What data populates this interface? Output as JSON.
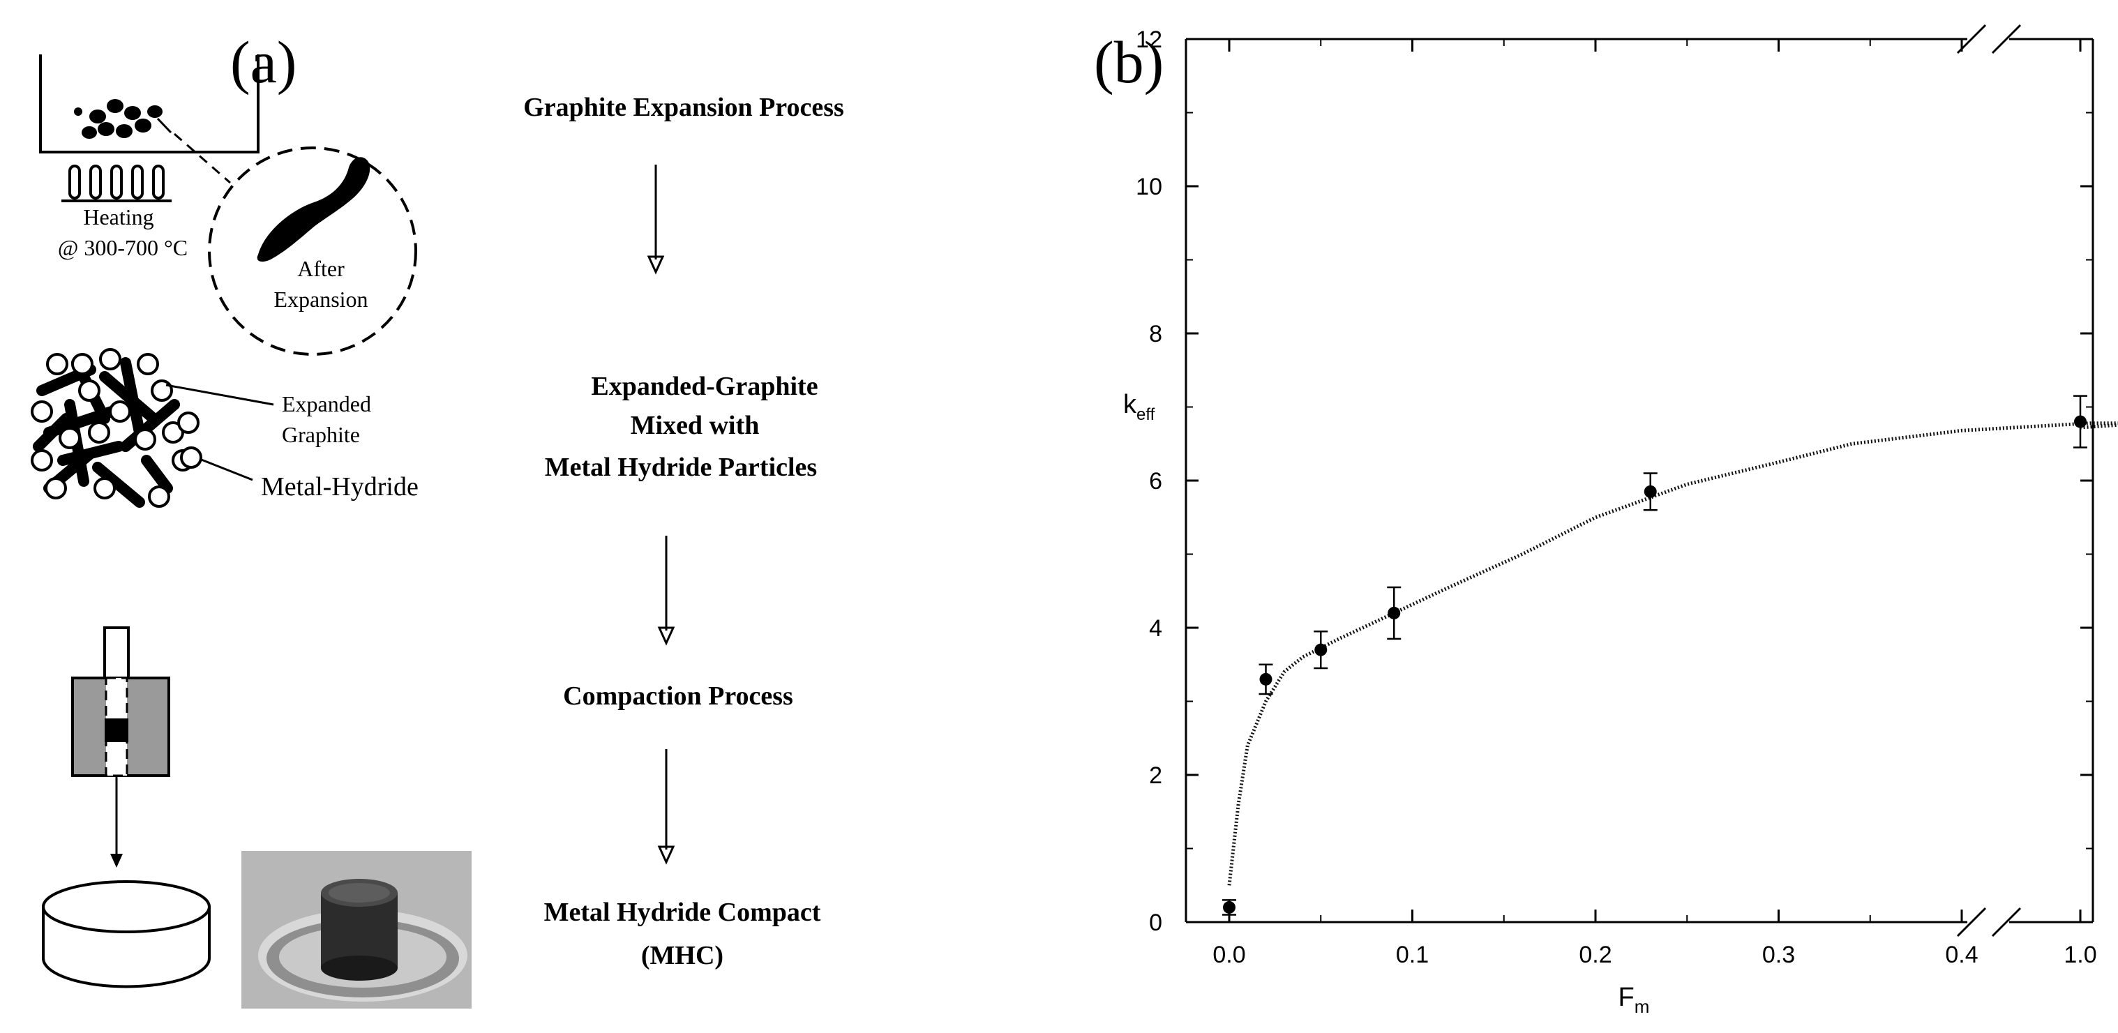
{
  "panel_a": {
    "label": "(a)",
    "heating_label": "Heating",
    "temperature_label": "@ 300-700 °C",
    "after_expansion_line1": "After",
    "after_expansion_line2": "Expansion",
    "expanded_graphite_line1": "Expanded",
    "expanded_graphite_line2": "Graphite",
    "metal_hydride_label": "Metal-Hydride",
    "steps": [
      "Graphite Expansion Process",
      "Expanded-Graphite",
      "Mixed with",
      "Metal Hydride Particles",
      "Compaction Process",
      "Metal Hydride Compact",
      "(MHC)"
    ]
  },
  "panel_b": {
    "label": "(b)",
    "chart_data": {
      "type": "scatter",
      "xlabel": "F",
      "xlabel_sub": "m",
      "ylabel": "k",
      "ylabel_sub": "eff",
      "ylim": [
        0,
        12
      ],
      "yticks": [
        "0",
        "2",
        "4",
        "6",
        "8",
        "10",
        "12"
      ],
      "xticks": [
        "0.0",
        "0.1",
        "0.2",
        "0.3",
        "0.4",
        "1.0"
      ],
      "x_axis_break": "between 0.4 and 1.0",
      "points": [
        {
          "x": 0.0,
          "y": 0.2,
          "err": 0.1
        },
        {
          "x": 0.02,
          "y": 3.3,
          "err": 0.2
        },
        {
          "x": 0.05,
          "y": 3.7,
          "err": 0.25
        },
        {
          "x": 0.09,
          "y": 4.2,
          "err": 0.35
        },
        {
          "x": 0.23,
          "y": 5.85,
          "err": 0.25
        },
        {
          "x": 1.0,
          "y": 6.8,
          "err": 0.35
        }
      ],
      "fit_curve": [
        {
          "x": 0.0,
          "y": 0.5
        },
        {
          "x": 0.005,
          "y": 1.6
        },
        {
          "x": 0.01,
          "y": 2.4
        },
        {
          "x": 0.02,
          "y": 3.0
        },
        {
          "x": 0.03,
          "y": 3.4
        },
        {
          "x": 0.04,
          "y": 3.6
        },
        {
          "x": 0.06,
          "y": 3.85
        },
        {
          "x": 0.09,
          "y": 4.2
        },
        {
          "x": 0.12,
          "y": 4.55
        },
        {
          "x": 0.16,
          "y": 5.0
        },
        {
          "x": 0.2,
          "y": 5.5
        },
        {
          "x": 0.25,
          "y": 5.95
        },
        {
          "x": 0.3,
          "y": 6.25
        },
        {
          "x": 0.34,
          "y": 6.5
        },
        {
          "x": 0.4,
          "y": 6.68
        },
        {
          "x": 0.47,
          "y": 6.78
        },
        {
          "x": 0.5,
          "y": 6.78
        },
        {
          "x": 1.0,
          "y": 6.72
        }
      ]
    }
  }
}
